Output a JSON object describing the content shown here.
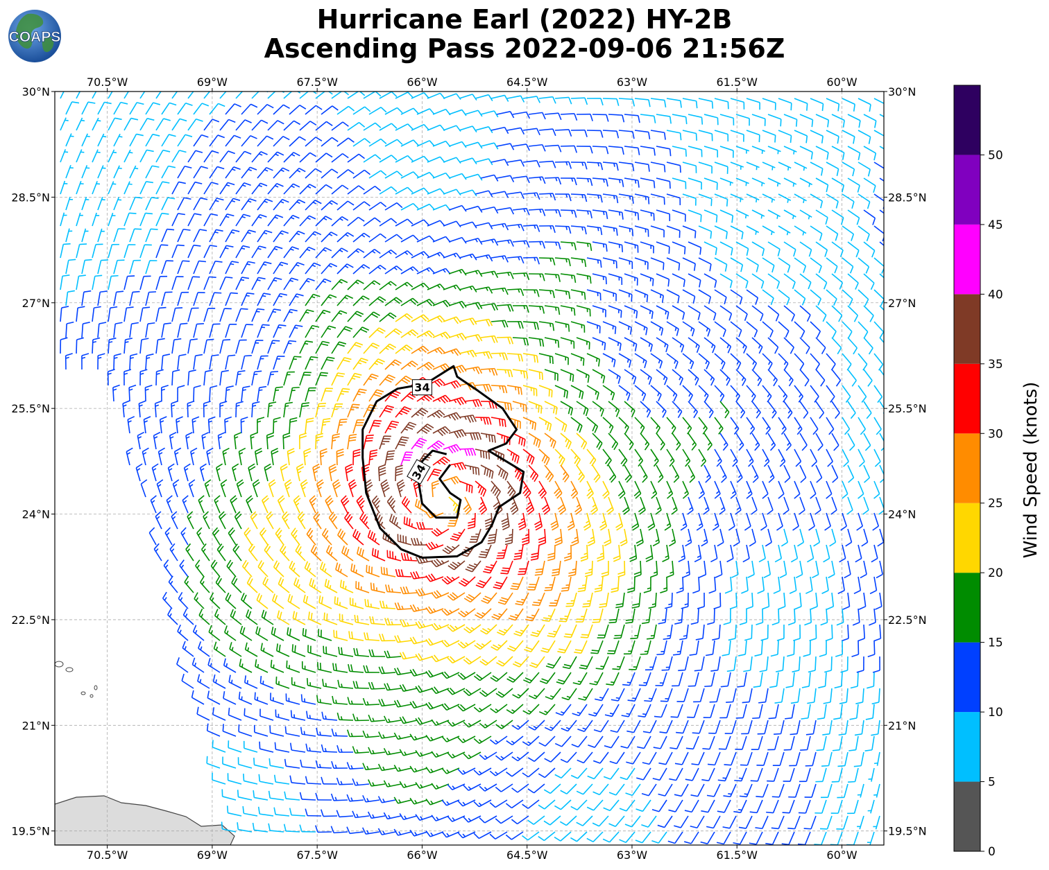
{
  "title": {
    "line1": "Hurricane Earl (2022) HY-2B",
    "line2": "Ascending Pass 2022-09-06 21:56Z"
  },
  "logo": {
    "text": "COAPS",
    "icon": "globe-logo-icon",
    "ocean_color": "#1b5fb5",
    "land_color": "#3f8f3a"
  },
  "map": {
    "lon_range": [
      -71.25,
      -59.4
    ],
    "lat_range": [
      19.3,
      30.0
    ],
    "gridlines": true,
    "lon_ticks": [
      {
        "value": -70.5,
        "label": "70.5°W"
      },
      {
        "value": -69.0,
        "label": "69°W"
      },
      {
        "value": -67.5,
        "label": "67.5°W"
      },
      {
        "value": -66.0,
        "label": "66°W"
      },
      {
        "value": -64.5,
        "label": "64.5°W"
      },
      {
        "value": -63.0,
        "label": "63°W"
      },
      {
        "value": -61.5,
        "label": "61.5°W"
      },
      {
        "value": -60.0,
        "label": "60°W"
      }
    ],
    "lat_ticks": [
      {
        "value": 30.0,
        "label": "30°N"
      },
      {
        "value": 28.5,
        "label": "28.5°N"
      },
      {
        "value": 27.0,
        "label": "27°N"
      },
      {
        "value": 25.5,
        "label": "25.5°N"
      },
      {
        "value": 24.0,
        "label": "24°N"
      },
      {
        "value": 22.5,
        "label": "22.5°N"
      },
      {
        "value": 21.0,
        "label": "21°N"
      },
      {
        "value": 19.5,
        "label": "19.5°N"
      }
    ],
    "storm_center": {
      "lon": -65.7,
      "lat": 24.2
    },
    "contour": {
      "level_label": "34",
      "outer": [
        [
          -65.95,
          25.85
        ],
        [
          -65.55,
          26.1
        ],
        [
          -65.5,
          25.95
        ],
        [
          -65.2,
          25.75
        ],
        [
          -64.85,
          25.5
        ],
        [
          -64.65,
          25.2
        ],
        [
          -64.8,
          25.0
        ],
        [
          -65.05,
          24.9
        ],
        [
          -64.8,
          24.75
        ],
        [
          -64.55,
          24.6
        ],
        [
          -64.6,
          24.3
        ],
        [
          -64.9,
          24.1
        ],
        [
          -65.0,
          23.85
        ],
        [
          -65.15,
          23.6
        ],
        [
          -65.5,
          23.4
        ],
        [
          -66.0,
          23.38
        ],
        [
          -66.3,
          23.5
        ],
        [
          -66.6,
          23.8
        ],
        [
          -66.8,
          24.3
        ],
        [
          -66.85,
          24.8
        ],
        [
          -66.85,
          25.2
        ],
        [
          -66.65,
          25.6
        ],
        [
          -66.35,
          25.78
        ]
      ],
      "inner": [
        [
          -65.65,
          24.85
        ],
        [
          -65.85,
          24.9
        ],
        [
          -66.0,
          24.75
        ],
        [
          -66.05,
          24.45
        ],
        [
          -66.0,
          24.15
        ],
        [
          -65.8,
          23.95
        ],
        [
          -65.5,
          23.95
        ],
        [
          -65.45,
          24.2
        ],
        [
          -65.6,
          24.3
        ],
        [
          -65.75,
          24.5
        ],
        [
          -65.6,
          24.7
        ]
      ],
      "label_positions": [
        {
          "lon": -66.0,
          "lat": 25.8
        },
        {
          "lon": -66.05,
          "lat": 24.6
        }
      ]
    },
    "land_color": "#dcdcdc",
    "coast_color": "#444444"
  },
  "colorbar": {
    "label": "Wind Speed (knots)",
    "bins": [
      {
        "min": 0,
        "max": 5,
        "color": "#555555"
      },
      {
        "min": 5,
        "max": 10,
        "color": "#00bfff"
      },
      {
        "min": 10,
        "max": 15,
        "color": "#0040ff"
      },
      {
        "min": 15,
        "max": 20,
        "color": "#008c00"
      },
      {
        "min": 20,
        "max": 25,
        "color": "#ffd700"
      },
      {
        "min": 25,
        "max": 30,
        "color": "#ff8c00"
      },
      {
        "min": 30,
        "max": 35,
        "color": "#ff0000"
      },
      {
        "min": 35,
        "max": 40,
        "color": "#7f3a26"
      },
      {
        "min": 40,
        "max": 45,
        "color": "#ff00ff"
      },
      {
        "min": 45,
        "max": 50,
        "color": "#8000bf"
      },
      {
        "min": 50,
        "max": 55,
        "color": "#2e0060"
      }
    ],
    "ticks": [
      0,
      5,
      10,
      15,
      20,
      25,
      30,
      35,
      40,
      45,
      50
    ]
  },
  "chart_data": {
    "type": "wind_barb_map",
    "units": "knots",
    "storm_center": {
      "lon": -65.7,
      "lat": 24.2
    },
    "wind_model": {
      "peak_speed": 40,
      "radius_of_max_wind_deg": 0.8,
      "inflow_angle_deg": 20,
      "background_speed": 8,
      "decay_scale_deg": 3.2
    }
  }
}
